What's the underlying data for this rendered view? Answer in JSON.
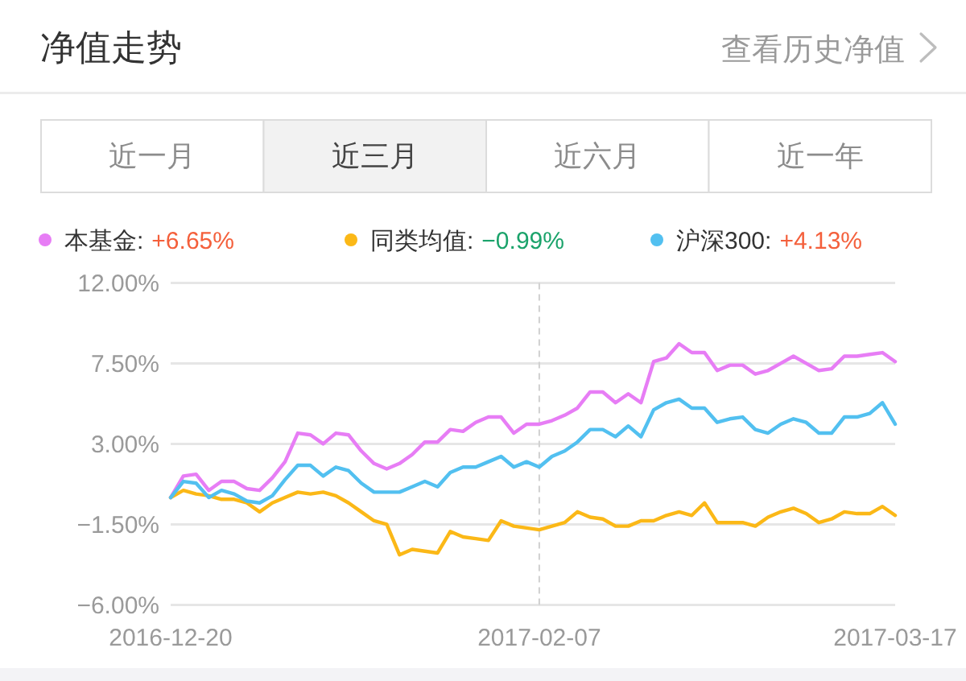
{
  "chart_data": {
    "type": "line",
    "title": "净值走势",
    "annotations": [
      "查看历史净值",
      "近一月",
      "近三月",
      "近六月",
      "近一年",
      "+6.65%",
      "−0.99%",
      "+4.13%"
    ],
    "categories": [
      "2016-12-20",
      null,
      null,
      null,
      null,
      null,
      null,
      null,
      null,
      null,
      null,
      null,
      null,
      null,
      null,
      null,
      null,
      null,
      null,
      null,
      null,
      null,
      null,
      null,
      null,
      null,
      null,
      null,
      null,
      "2017-02-07",
      null,
      null,
      null,
      null,
      null,
      null,
      null,
      null,
      null,
      null,
      null,
      null,
      null,
      null,
      null,
      null,
      null,
      null,
      null,
      null,
      null,
      null,
      null,
      null,
      null,
      null,
      null,
      "2017-03-17"
    ],
    "series": [
      {
        "name": "本基金:",
        "color": "#e77df5",
        "values": [
          0,
          1.2,
          1.3,
          0.4,
          0.9,
          0.9,
          0.5,
          0.4,
          1.1,
          2.0,
          3.6,
          3.5,
          3.0,
          3.6,
          3.5,
          2.6,
          1.9,
          1.6,
          1.9,
          2.4,
          3.1,
          3.1,
          3.8,
          3.7,
          4.2,
          4.5,
          4.5,
          3.6,
          4.1,
          4.1,
          4.3,
          4.6,
          5.0,
          5.9,
          5.9,
          5.3,
          5.8,
          5.3,
          7.6,
          7.8,
          8.6,
          8.1,
          8.1,
          7.1,
          7.4,
          7.4,
          6.9,
          7.1,
          7.5,
          7.9,
          7.5,
          7.1,
          7.2,
          7.9,
          7.9,
          8.0,
          8.1,
          7.6
        ]
      },
      {
        "name": "同类均值:",
        "color": "#fbb817",
        "values": [
          0,
          0.4,
          0.2,
          0.1,
          -0.1,
          -0.1,
          -0.3,
          -0.8,
          -0.3,
          0.0,
          0.3,
          0.2,
          0.3,
          0.1,
          -0.3,
          -0.8,
          -1.3,
          -1.5,
          -3.2,
          -2.9,
          -3.0,
          -3.1,
          -1.9,
          -2.2,
          -2.3,
          -2.4,
          -1.3,
          -1.6,
          -1.7,
          -1.8,
          -1.6,
          -1.4,
          -0.8,
          -1.1,
          -1.2,
          -1.6,
          -1.6,
          -1.3,
          -1.3,
          -1.0,
          -0.8,
          -1.0,
          -0.3,
          -1.4,
          -1.4,
          -1.4,
          -1.6,
          -1.1,
          -0.8,
          -0.6,
          -0.9,
          -1.4,
          -1.2,
          -0.8,
          -0.9,
          -0.9,
          -0.5,
          -1.0
        ]
      },
      {
        "name": "沪深300:",
        "color": "#52c0f0",
        "values": [
          0,
          0.9,
          0.8,
          0.0,
          0.4,
          0.2,
          -0.2,
          -0.3,
          0.1,
          1.0,
          1.8,
          1.8,
          1.2,
          1.7,
          1.5,
          0.8,
          0.3,
          0.3,
          0.3,
          0.6,
          0.9,
          0.6,
          1.4,
          1.7,
          1.7,
          2.0,
          2.3,
          1.7,
          2.0,
          1.7,
          2.3,
          2.6,
          3.1,
          3.8,
          3.8,
          3.4,
          4.0,
          3.4,
          4.9,
          5.3,
          5.5,
          5.0,
          5.0,
          4.2,
          4.4,
          4.5,
          3.8,
          3.6,
          4.1,
          4.4,
          4.2,
          3.6,
          3.6,
          4.5,
          4.5,
          4.7,
          5.3,
          4.1
        ]
      }
    ],
    "ylim": [
      -6,
      12
    ],
    "yticks": [
      {
        "value": 12,
        "label": "12.00%"
      },
      {
        "value": 7.5,
        "label": "7.50%"
      },
      {
        "value": 3,
        "label": "3.00%"
      },
      {
        "value": -1.5,
        "label": "−1.50%"
      },
      {
        "value": -6,
        "label": "−6.00%"
      }
    ],
    "grid": "y",
    "legend": "top",
    "ref_lines": [
      {
        "axis": "x",
        "value": "2017-02-07",
        "color": "#d0d0d0",
        "line_style": "dashed"
      }
    ]
  }
}
